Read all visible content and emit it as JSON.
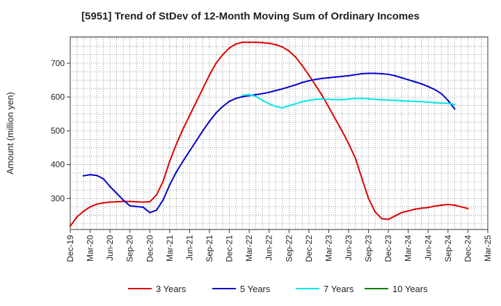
{
  "title": "[5951]  Trend of StDev of 12-Month Moving Sum of Ordinary Incomes",
  "chart_data": {
    "type": "line",
    "title": "[5951]  Trend of StDev of 12-Month Moving Sum of Ordinary Incomes",
    "xlabel": "",
    "ylabel": "Amount (million yen)",
    "ylim": [
      208,
      778
    ],
    "yticks": [
      300,
      400,
      500,
      600,
      700
    ],
    "grid": true,
    "legend_position": "bottom",
    "x_start": "Dec-19",
    "x_count": 64,
    "xtick_labels": [
      "Dec-19",
      "Mar-20",
      "Jun-20",
      "Sep-20",
      "Dec-20",
      "Mar-21",
      "Jun-21",
      "Sep-21",
      "Dec-21",
      "Mar-22",
      "Jun-22",
      "Sep-22",
      "Dec-22",
      "Mar-23",
      "Jun-23",
      "Sep-23",
      "Dec-23",
      "Mar-24",
      "Jun-24",
      "Sep-24",
      "Dec-24",
      "Mar-25"
    ],
    "series": [
      {
        "name": "3 Years",
        "color": "#dd0000",
        "start_index": 0,
        "values": [
          218,
          245,
          262,
          275,
          283,
          287,
          289,
          290,
          291,
          291,
          290,
          289,
          290,
          310,
          350,
          410,
          460,
          505,
          545,
          585,
          625,
          665,
          700,
          725,
          745,
          757,
          762,
          762,
          762,
          761,
          759,
          755,
          748,
          736,
          718,
          693,
          665,
          635,
          605,
          570,
          535,
          500,
          462,
          420,
          360,
          300,
          260,
          240,
          238,
          248,
          258,
          263,
          268,
          271,
          273,
          277,
          280,
          282,
          280,
          275,
          270
        ]
      },
      {
        "name": "5 Years",
        "color": "#0000cc",
        "start_index": 2,
        "values": [
          367,
          370,
          368,
          358,
          335,
          315,
          295,
          278,
          276,
          274,
          258,
          265,
          295,
          340,
          378,
          410,
          440,
          470,
          500,
          528,
          553,
          572,
          587,
          596,
          601,
          604,
          607,
          610,
          614,
          619,
          624,
          630,
          636,
          643,
          648,
          652,
          655,
          657,
          659,
          661,
          663,
          666,
          669,
          670,
          670,
          669,
          667,
          663,
          657,
          651,
          645,
          639,
          631,
          622,
          610,
          590,
          565
        ]
      },
      {
        "name": "7 Years",
        "color": "#00e5e5",
        "start_index": 26,
        "values": [
          605,
          607,
          602,
          590,
          580,
          572,
          568,
          574,
          580,
          586,
          590,
          593,
          594,
          593,
          592,
          592,
          594,
          596,
          596,
          595,
          593,
          592,
          591,
          590,
          589,
          588,
          587,
          586,
          585,
          583,
          582,
          581,
          578
        ]
      },
      {
        "name": "10 Years",
        "color": "#008000",
        "start_index": 0,
        "values": []
      }
    ]
  }
}
